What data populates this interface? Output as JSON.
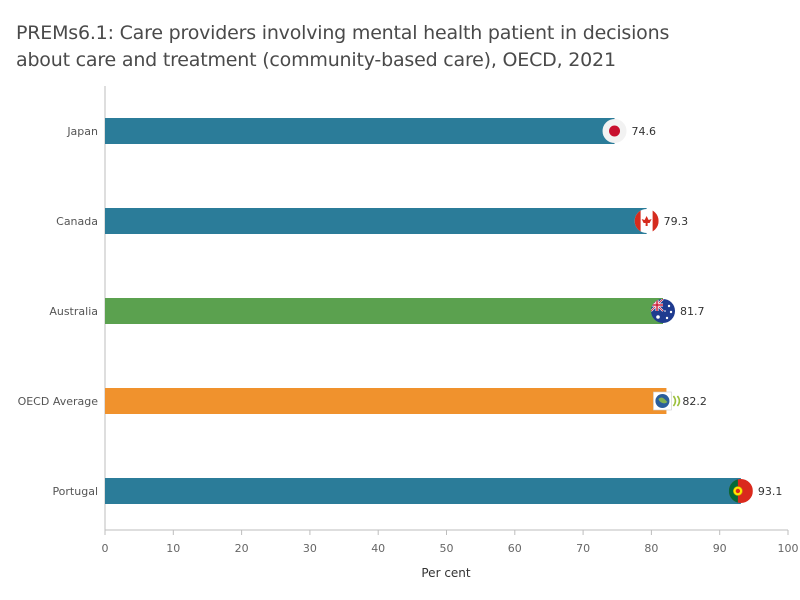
{
  "chart_data": {
    "type": "bar",
    "orientation": "horizontal",
    "title_lines": [
      "PREMs6.1: Care providers involving mental health patient in decisions",
      "about care and treatment (community-based care), OECD, 2021"
    ],
    "xlabel": "Per cent",
    "ylabel": "",
    "xlim": [
      0,
      100
    ],
    "ticks": [
      0,
      10,
      20,
      30,
      40,
      50,
      60,
      70,
      80,
      90,
      100
    ],
    "grid": false,
    "legend": "none",
    "categories": [
      "Japan",
      "Canada",
      "Australia",
      "OECD Average",
      "Portugal"
    ],
    "values": [
      74.6,
      79.3,
      81.7,
      82.2,
      93.1
    ],
    "value_labels": [
      "74.6",
      "79.3",
      "81.7",
      "82.2",
      "93.1"
    ],
    "bar_colors": [
      "#2b7c99",
      "#2b7c99",
      "#5ba14f",
      "#f0922d",
      "#2b7c99"
    ],
    "markers": [
      "japan-flag",
      "canada-flag",
      "australia-flag",
      "oecd-logo",
      "portugal-flag"
    ]
  }
}
